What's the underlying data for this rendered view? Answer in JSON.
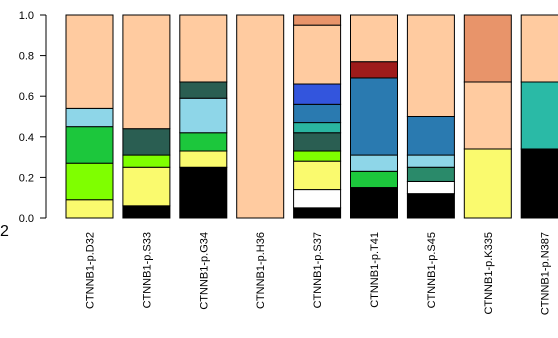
{
  "chart_data": {
    "type": "bar",
    "stacked": true,
    "categories": [
      "CTNNB1-p.D32",
      "CTNNB1-p.S33",
      "CTNNB1-p.G34",
      "CTNNB1-p.H36",
      "CTNNB1-p.S37",
      "CTNNB1-p.T41",
      "CTNNB1-p.S45",
      "CTNNB1-p.K335",
      "CTNNB1-p.N387"
    ],
    "ylim": [
      0,
      1.0
    ],
    "yticks": [
      0.0,
      0.2,
      0.4,
      0.6,
      0.8,
      1.0
    ],
    "ytick_labels": [
      "0.0",
      "0.2",
      "0.4",
      "0.6",
      "0.8",
      "1.0"
    ],
    "grid": false,
    "xlabel": "",
    "ylabel": "",
    "title": "",
    "stray_label": "2",
    "bars": [
      {
        "segments": [
          {
            "value": 0.09,
            "color": "#FAFA6E"
          },
          {
            "value": 0.18,
            "color": "#7FFF00"
          },
          {
            "value": 0.18,
            "color": "#1CC73C"
          },
          {
            "value": 0.09,
            "color": "#8ED6E8"
          },
          {
            "value": 0.46,
            "color": "#FFCBA0"
          }
        ]
      },
      {
        "segments": [
          {
            "value": 0.06,
            "color": "#000000"
          },
          {
            "value": 0.19,
            "color": "#FAFA6E"
          },
          {
            "value": 0.06,
            "color": "#7FFF00"
          },
          {
            "value": 0.13,
            "color": "#2A5E52"
          },
          {
            "value": 0.56,
            "color": "#FFCBA0"
          }
        ]
      },
      {
        "segments": [
          {
            "value": 0.25,
            "color": "#000000"
          },
          {
            "value": 0.08,
            "color": "#FAFA6E"
          },
          {
            "value": 0.09,
            "color": "#1CC73C"
          },
          {
            "value": 0.17,
            "color": "#8ED6E8"
          },
          {
            "value": 0.08,
            "color": "#2A5E52"
          },
          {
            "value": 0.33,
            "color": "#FFCBA0"
          }
        ]
      },
      {
        "segments": [
          {
            "value": 1.0,
            "color": "#FFCBA0"
          }
        ]
      },
      {
        "segments": [
          {
            "value": 0.05,
            "color": "#000000"
          },
          {
            "value": 0.09,
            "color": "#FFFFFF"
          },
          {
            "value": 0.14,
            "color": "#FAFA6E"
          },
          {
            "value": 0.05,
            "color": "#7FFF00"
          },
          {
            "value": 0.09,
            "color": "#2A5E52"
          },
          {
            "value": 0.05,
            "color": "#2AB5A0"
          },
          {
            "value": 0.09,
            "color": "#2A7AB0"
          },
          {
            "value": 0.1,
            "color": "#3355DD"
          },
          {
            "value": 0.29,
            "color": "#FFCBA0"
          },
          {
            "value": 0.05,
            "color": "#E8946A"
          }
        ]
      },
      {
        "segments": [
          {
            "value": 0.15,
            "color": "#000000"
          },
          {
            "value": 0.08,
            "color": "#1CC73C"
          },
          {
            "value": 0.08,
            "color": "#8ED6E8"
          },
          {
            "value": 0.38,
            "color": "#2A7AB0"
          },
          {
            "value": 0.08,
            "color": "#9E1B1B"
          },
          {
            "value": 0.23,
            "color": "#FFCBA0"
          }
        ]
      },
      {
        "segments": [
          {
            "value": 0.12,
            "color": "#000000"
          },
          {
            "value": 0.06,
            "color": "#FFFFFF"
          },
          {
            "value": 0.07,
            "color": "#2A8A6A"
          },
          {
            "value": 0.06,
            "color": "#8ED6E8"
          },
          {
            "value": 0.19,
            "color": "#2A7AB0"
          },
          {
            "value": 0.5,
            "color": "#FFCBA0"
          }
        ]
      },
      {
        "segments": [
          {
            "value": 0.34,
            "color": "#FAFA6E"
          },
          {
            "value": 0.33,
            "color": "#FFCBA0"
          },
          {
            "value": 0.33,
            "color": "#E8946A"
          }
        ]
      },
      {
        "segments": [
          {
            "value": 0.34,
            "color": "#000000"
          },
          {
            "value": 0.33,
            "color": "#2ABAA6"
          },
          {
            "value": 0.33,
            "color": "#FFCBA0"
          }
        ]
      }
    ]
  }
}
